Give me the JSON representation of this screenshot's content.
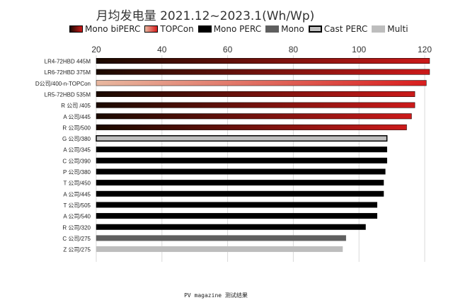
{
  "chart_data": {
    "type": "bar",
    "orientation": "horizontal",
    "title": "月均发电量 2021.12~2023.1(Wh/Wp)",
    "xlabel": "",
    "ylabel": "",
    "xlim": [
      20,
      122
    ],
    "xticks": [
      20,
      40,
      60,
      80,
      100,
      120
    ],
    "grid": true,
    "legend_position": "top",
    "legend": [
      {
        "name": "Mono biPERC",
        "style": "gradient",
        "colors": [
          "#1a0a00",
          "#cc1a1a"
        ],
        "border": "#000000"
      },
      {
        "name": "TOPCon",
        "style": "gradient",
        "colors": [
          "#e8b8a0",
          "#d81e1e"
        ],
        "border": "#000000"
      },
      {
        "name": "Mono PERC",
        "style": "solid",
        "colors": [
          "#000000"
        ],
        "border": "#000000"
      },
      {
        "name": "Mono",
        "style": "solid",
        "colors": [
          "#5f5f5f"
        ],
        "border": "#5f5f5f"
      },
      {
        "name": "Cast PERC",
        "style": "solid",
        "colors": [
          "#bfbfbf"
        ],
        "border": "#000000"
      },
      {
        "name": "Multi",
        "style": "solid",
        "colors": [
          "#bdbdbd"
        ],
        "border": "#bdbdbd"
      }
    ],
    "categories": [
      "LR4-72HBD 445M",
      "LR6-72HBD 375M",
      "D公司/400-n-TOPCon",
      "LR5-72HBD 535M",
      "R 公司 /405",
      "A 公司/445",
      "R 公司/500",
      "G 公司/380",
      "A 公司/345",
      "C 公司/390",
      "P 公司/380",
      "T 公司/450",
      "A 公司/445",
      "T 公司/505",
      "A 公司/540",
      "R 公司/320",
      "C 公司/275",
      "Z 公司/275"
    ],
    "values": [
      121.5,
      121.5,
      120.5,
      117.0,
      117.0,
      116.0,
      114.5,
      108.5,
      108.5,
      108.5,
      108.0,
      107.5,
      107.5,
      105.5,
      105.5,
      102.0,
      96.0,
      95.0
    ],
    "bar_types": [
      "Mono biPERC",
      "Mono biPERC",
      "TOPCon",
      "Mono biPERC",
      "Mono biPERC",
      "Mono biPERC",
      "Mono biPERC",
      "Cast PERC",
      "Mono PERC",
      "Mono PERC",
      "Mono PERC",
      "Mono PERC",
      "Mono PERC",
      "Mono PERC",
      "Mono PERC",
      "Mono PERC",
      "Mono",
      "Multi"
    ]
  },
  "footer": "PV magazine 测试结果"
}
